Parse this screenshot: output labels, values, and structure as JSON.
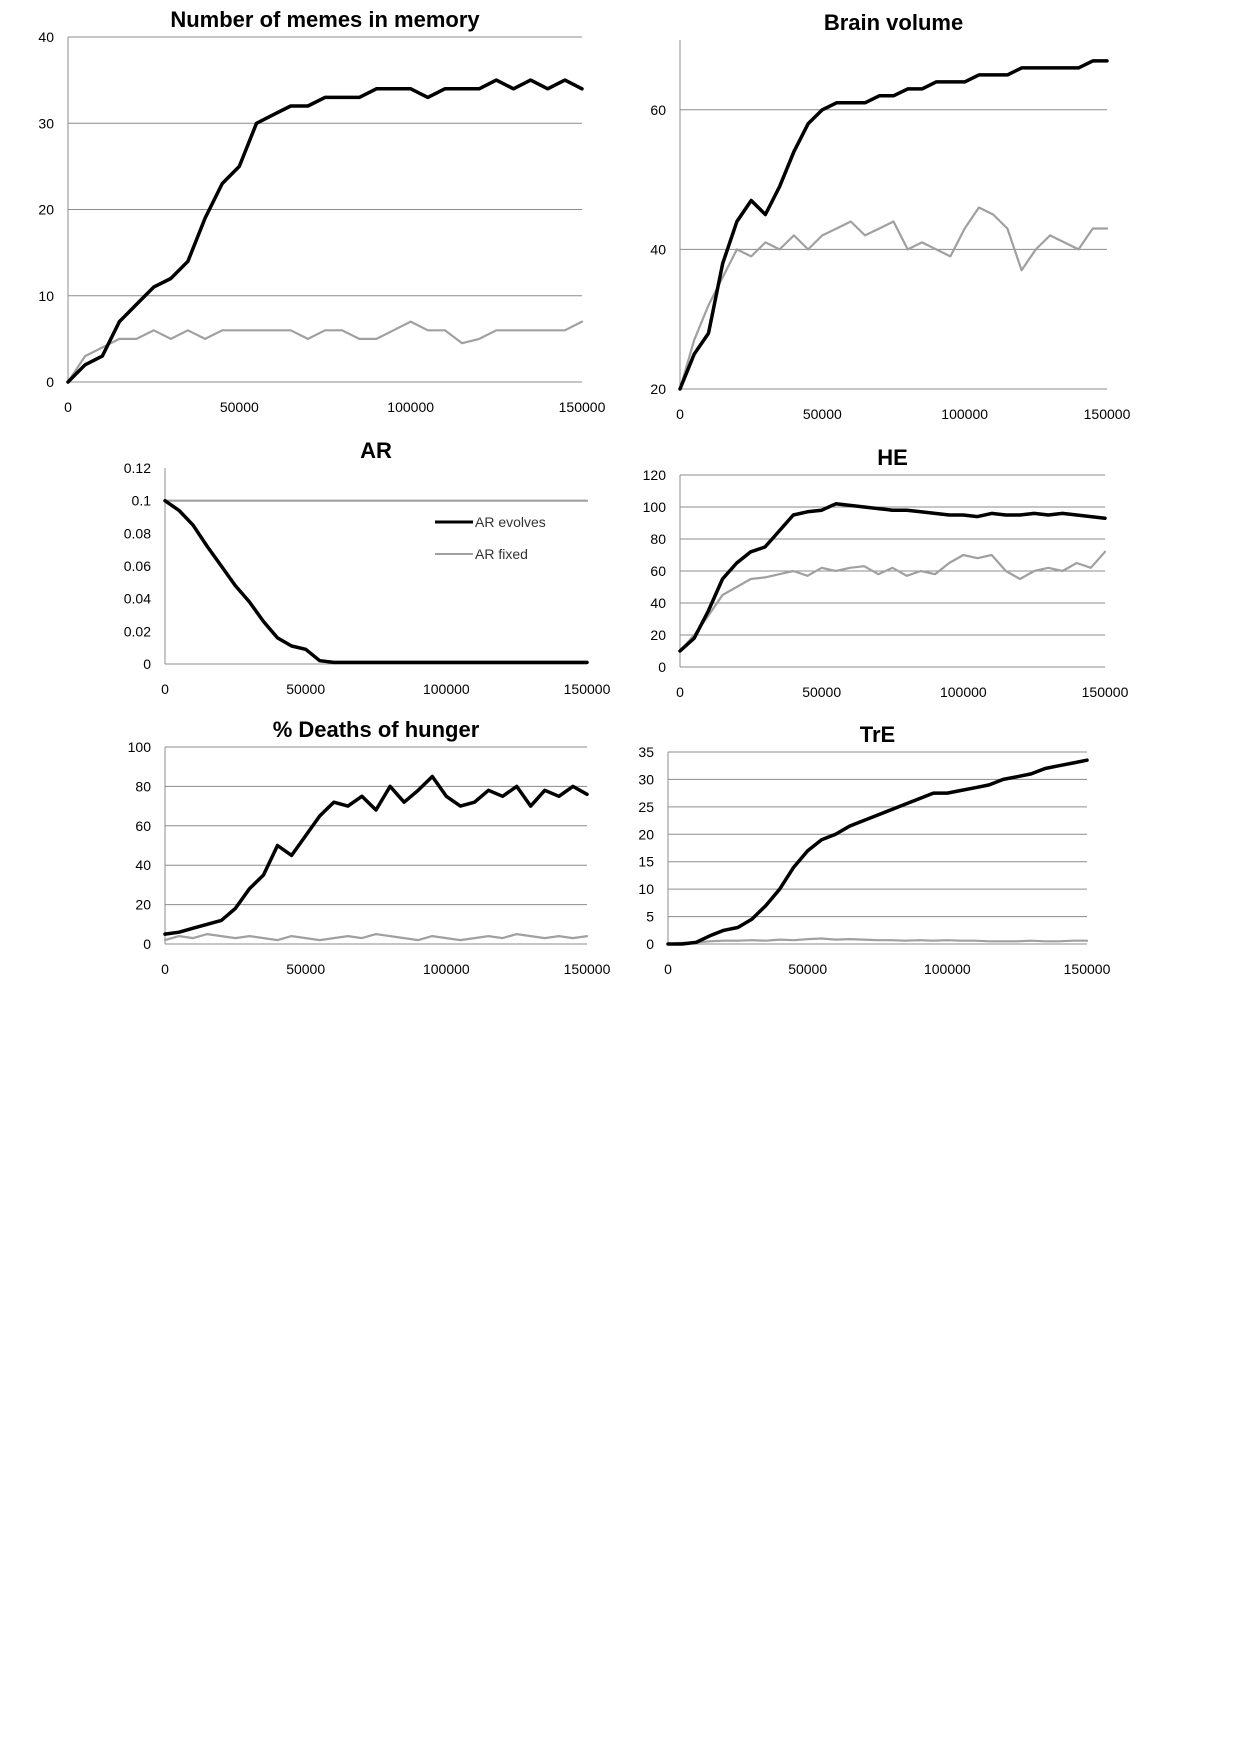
{
  "colors": {
    "evolves": "#000000",
    "fixed": "#a0a0a0"
  },
  "legend": [
    {
      "label": "AR evolves",
      "color": "#000000",
      "width": 3
    },
    {
      "label": "AR fixed",
      "color": "#a0a0a0",
      "width": 2
    }
  ],
  "chart_data": [
    {
      "type": "line",
      "title": "Number of memes in memory",
      "xlim": [
        0,
        150000
      ],
      "ylim": [
        0,
        40
      ],
      "xticks": [
        0,
        50000,
        100000,
        150000
      ],
      "yticks": [
        0,
        10,
        20,
        30,
        40
      ],
      "grid": true,
      "series": [
        {
          "key": "evolves",
          "x": [
            0,
            5000,
            10000,
            15000,
            20000,
            25000,
            30000,
            35000,
            40000,
            45000,
            50000,
            55000,
            60000,
            65000,
            70000,
            75000,
            80000,
            85000,
            90000,
            95000,
            100000,
            105000,
            110000,
            115000,
            120000,
            125000,
            130000,
            135000,
            140000,
            145000,
            150000
          ],
          "values": [
            0,
            2,
            3,
            7,
            9,
            11,
            12,
            14,
            19,
            23,
            25,
            30,
            31,
            32,
            32,
            33,
            33,
            33,
            34,
            34,
            34,
            33,
            34,
            34,
            34,
            35,
            34,
            35,
            34,
            35,
            34
          ]
        },
        {
          "key": "fixed",
          "x": [
            0,
            5000,
            10000,
            15000,
            20000,
            25000,
            30000,
            35000,
            40000,
            45000,
            50000,
            55000,
            60000,
            65000,
            70000,
            75000,
            80000,
            85000,
            90000,
            95000,
            100000,
            105000,
            110000,
            115000,
            120000,
            125000,
            130000,
            135000,
            140000,
            145000,
            150000
          ],
          "values": [
            0,
            3,
            4,
            5,
            5,
            6,
            5,
            6,
            5,
            6,
            6,
            6,
            6,
            6,
            5,
            6,
            6,
            5,
            5,
            6,
            7,
            6,
            6,
            4.5,
            5,
            6,
            6,
            6,
            6,
            6,
            7
          ]
        }
      ]
    },
    {
      "type": "line",
      "title": "Brain volume",
      "xlim": [
        0,
        150000
      ],
      "ylim": [
        20,
        70
      ],
      "xticks": [
        0,
        50000,
        100000,
        150000
      ],
      "yticks": [
        20,
        40,
        60
      ],
      "grid": true,
      "series": [
        {
          "key": "evolves",
          "x": [
            0,
            5000,
            10000,
            15000,
            20000,
            25000,
            30000,
            35000,
            40000,
            45000,
            50000,
            55000,
            60000,
            65000,
            70000,
            75000,
            80000,
            85000,
            90000,
            95000,
            100000,
            105000,
            110000,
            115000,
            120000,
            125000,
            130000,
            135000,
            140000,
            145000,
            150000
          ],
          "values": [
            20,
            25,
            28,
            38,
            44,
            47,
            45,
            49,
            54,
            58,
            60,
            61,
            61,
            61,
            62,
            62,
            63,
            63,
            64,
            64,
            64,
            65,
            65,
            65,
            66,
            66,
            66,
            66,
            66,
            67,
            67
          ]
        },
        {
          "key": "fixed",
          "x": [
            0,
            5000,
            10000,
            15000,
            20000,
            25000,
            30000,
            35000,
            40000,
            45000,
            50000,
            55000,
            60000,
            65000,
            70000,
            75000,
            80000,
            85000,
            90000,
            95000,
            100000,
            105000,
            110000,
            115000,
            120000,
            125000,
            130000,
            135000,
            140000,
            145000,
            150000
          ],
          "values": [
            20,
            27,
            32,
            36,
            40,
            39,
            41,
            40,
            42,
            40,
            42,
            43,
            44,
            42,
            43,
            44,
            40,
            41,
            40,
            39,
            43,
            46,
            45,
            43,
            37,
            40,
            42,
            41,
            40,
            43,
            43
          ]
        }
      ]
    },
    {
      "type": "line",
      "title": "AR",
      "xlim": [
        0,
        150000
      ],
      "ylim": [
        0,
        0.12
      ],
      "xticks": [
        0,
        50000,
        100000,
        150000
      ],
      "yticks": [
        0,
        0.02,
        0.04,
        0.06,
        0.08,
        0.1,
        0.12
      ],
      "grid": false,
      "series": [
        {
          "key": "evolves",
          "x": [
            0,
            5000,
            10000,
            15000,
            20000,
            25000,
            30000,
            35000,
            40000,
            45000,
            50000,
            55000,
            60000,
            65000,
            70000,
            75000,
            80000,
            85000,
            90000,
            95000,
            100000,
            105000,
            110000,
            115000,
            120000,
            125000,
            130000,
            135000,
            140000,
            145000,
            150000
          ],
          "values": [
            0.1,
            0.094,
            0.085,
            0.072,
            0.06,
            0.048,
            0.038,
            0.026,
            0.016,
            0.011,
            0.009,
            0.002,
            0.001,
            0.001,
            0.001,
            0.001,
            0.001,
            0.001,
            0.001,
            0.001,
            0.001,
            0.001,
            0.001,
            0.001,
            0.001,
            0.001,
            0.001,
            0.001,
            0.001,
            0.001,
            0.001
          ]
        },
        {
          "key": "fixed",
          "x": [
            0,
            150000
          ],
          "values": [
            0.1,
            0.1
          ]
        }
      ]
    },
    {
      "type": "line",
      "title": "HE",
      "xlim": [
        0,
        150000
      ],
      "ylim": [
        0,
        120
      ],
      "xticks": [
        0,
        50000,
        100000,
        150000
      ],
      "yticks": [
        0,
        20,
        40,
        60,
        80,
        100,
        120
      ],
      "grid": true,
      "series": [
        {
          "key": "evolves",
          "x": [
            0,
            5000,
            10000,
            15000,
            20000,
            25000,
            30000,
            35000,
            40000,
            45000,
            50000,
            55000,
            60000,
            65000,
            70000,
            75000,
            80000,
            85000,
            90000,
            95000,
            100000,
            105000,
            110000,
            115000,
            120000,
            125000,
            130000,
            135000,
            140000,
            145000,
            150000
          ],
          "values": [
            10,
            18,
            35,
            55,
            65,
            72,
            75,
            85,
            95,
            97,
            98,
            102,
            101,
            100,
            99,
            98,
            98,
            97,
            96,
            95,
            95,
            94,
            96,
            95,
            95,
            96,
            95,
            96,
            95,
            94,
            93
          ]
        },
        {
          "key": "fixed",
          "x": [
            0,
            5000,
            10000,
            15000,
            20000,
            25000,
            30000,
            35000,
            40000,
            45000,
            50000,
            55000,
            60000,
            65000,
            70000,
            75000,
            80000,
            85000,
            90000,
            95000,
            100000,
            105000,
            110000,
            115000,
            120000,
            125000,
            130000,
            135000,
            140000,
            145000,
            150000
          ],
          "values": [
            10,
            20,
            32,
            45,
            50,
            55,
            56,
            58,
            60,
            57,
            62,
            60,
            62,
            63,
            58,
            62,
            57,
            60,
            58,
            65,
            70,
            68,
            70,
            60,
            55,
            60,
            62,
            60,
            65,
            62,
            72
          ]
        }
      ]
    },
    {
      "type": "line",
      "title": "% Deaths of hunger",
      "xlim": [
        0,
        150000
      ],
      "ylim": [
        0,
        100
      ],
      "xticks": [
        0,
        50000,
        100000,
        150000
      ],
      "yticks": [
        0,
        20,
        40,
        60,
        80,
        100
      ],
      "grid": true,
      "series": [
        {
          "key": "evolves",
          "x": [
            0,
            5000,
            10000,
            15000,
            20000,
            25000,
            30000,
            35000,
            40000,
            45000,
            50000,
            55000,
            60000,
            65000,
            70000,
            75000,
            80000,
            85000,
            90000,
            95000,
            100000,
            105000,
            110000,
            115000,
            120000,
            125000,
            130000,
            135000,
            140000,
            145000,
            150000
          ],
          "values": [
            5,
            6,
            8,
            10,
            12,
            18,
            28,
            35,
            50,
            45,
            55,
            65,
            72,
            70,
            75,
            68,
            80,
            72,
            78,
            85,
            75,
            70,
            72,
            78,
            75,
            80,
            70,
            78,
            75,
            80,
            76
          ]
        },
        {
          "key": "fixed",
          "x": [
            0,
            5000,
            10000,
            15000,
            20000,
            25000,
            30000,
            35000,
            40000,
            45000,
            50000,
            55000,
            60000,
            65000,
            70000,
            75000,
            80000,
            85000,
            90000,
            95000,
            100000,
            105000,
            110000,
            115000,
            120000,
            125000,
            130000,
            135000,
            140000,
            145000,
            150000
          ],
          "values": [
            2,
            4,
            3,
            5,
            4,
            3,
            4,
            3,
            2,
            4,
            3,
            2,
            3,
            4,
            3,
            5,
            4,
            3,
            2,
            4,
            3,
            2,
            3,
            4,
            3,
            5,
            4,
            3,
            4,
            3,
            4
          ]
        }
      ]
    },
    {
      "type": "line",
      "title": "TrE",
      "xlim": [
        0,
        150000
      ],
      "ylim": [
        0,
        35
      ],
      "xticks": [
        0,
        50000,
        100000,
        150000
      ],
      "yticks": [
        0,
        5,
        10,
        15,
        20,
        25,
        30,
        35
      ],
      "grid": true,
      "series": [
        {
          "key": "evolves",
          "x": [
            0,
            5000,
            10000,
            15000,
            20000,
            25000,
            30000,
            35000,
            40000,
            45000,
            50000,
            55000,
            60000,
            65000,
            70000,
            75000,
            80000,
            85000,
            90000,
            95000,
            100000,
            105000,
            110000,
            115000,
            120000,
            125000,
            130000,
            135000,
            140000,
            145000,
            150000
          ],
          "values": [
            0,
            0,
            0.3,
            1.5,
            2.5,
            3,
            4.5,
            7,
            10,
            14,
            17,
            19,
            20,
            21.5,
            22.5,
            23.5,
            24.5,
            25.5,
            26.5,
            27.5,
            27.5,
            28,
            28.5,
            29,
            30,
            30.5,
            31,
            32,
            32.5,
            33,
            33.5
          ]
        },
        {
          "key": "fixed",
          "x": [
            0,
            5000,
            10000,
            15000,
            20000,
            25000,
            30000,
            35000,
            40000,
            45000,
            50000,
            55000,
            60000,
            65000,
            70000,
            75000,
            80000,
            85000,
            90000,
            95000,
            100000,
            105000,
            110000,
            115000,
            120000,
            125000,
            130000,
            135000,
            140000,
            145000,
            150000
          ],
          "values": [
            0,
            0.2,
            0.3,
            0.5,
            0.6,
            0.6,
            0.7,
            0.6,
            0.8,
            0.7,
            0.9,
            1,
            0.8,
            0.9,
            0.8,
            0.7,
            0.7,
            0.6,
            0.7,
            0.6,
            0.7,
            0.6,
            0.6,
            0.5,
            0.5,
            0.5,
            0.6,
            0.5,
            0.5,
            0.6,
            0.6
          ]
        }
      ]
    }
  ]
}
